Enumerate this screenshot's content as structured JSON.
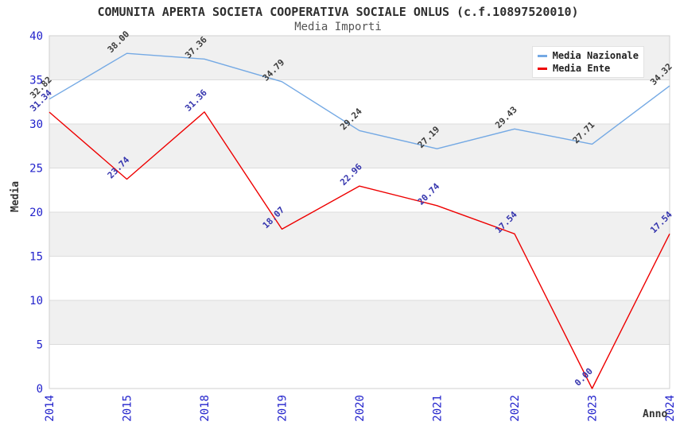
{
  "chart_data": {
    "type": "line",
    "title": "COMUNITA APERTA SOCIETA COOPERATIVA SOCIALE ONLUS (c.f.10897520010)",
    "subtitle": "Media Importi",
    "xlabel": "Anno",
    "ylabel": "Media",
    "categories": [
      "2014",
      "2015",
      "2018",
      "2019",
      "2020",
      "2021",
      "2022",
      "2023",
      "2024"
    ],
    "series": [
      {
        "name": "Media Nazionale",
        "color": "#74a9e4",
        "label_color": "#3c3c3c",
        "values": [
          32.82,
          38.0,
          37.36,
          34.79,
          29.24,
          27.19,
          29.43,
          27.71,
          34.32
        ]
      },
      {
        "name": "Media Ente",
        "color": "#ee0000",
        "label_color": "#3434ad",
        "values": [
          31.34,
          23.74,
          31.36,
          18.07,
          22.96,
          20.74,
          17.54,
          0.0,
          17.54
        ]
      }
    ],
    "ylim": [
      0,
      40
    ],
    "ytick_step": 5,
    "yticks": [
      0,
      5,
      10,
      15,
      20,
      25,
      30,
      35,
      40
    ],
    "value_decimals": 2,
    "grid": true,
    "legend_position": "top-right",
    "colors": {
      "tick_label": "#2323cc",
      "band": "#f0f0f0",
      "gridline": "#dcdcdc",
      "plot_border": "#cfcfcf",
      "title_text": "#2e2e2e",
      "subtitle_text": "#555555"
    }
  }
}
